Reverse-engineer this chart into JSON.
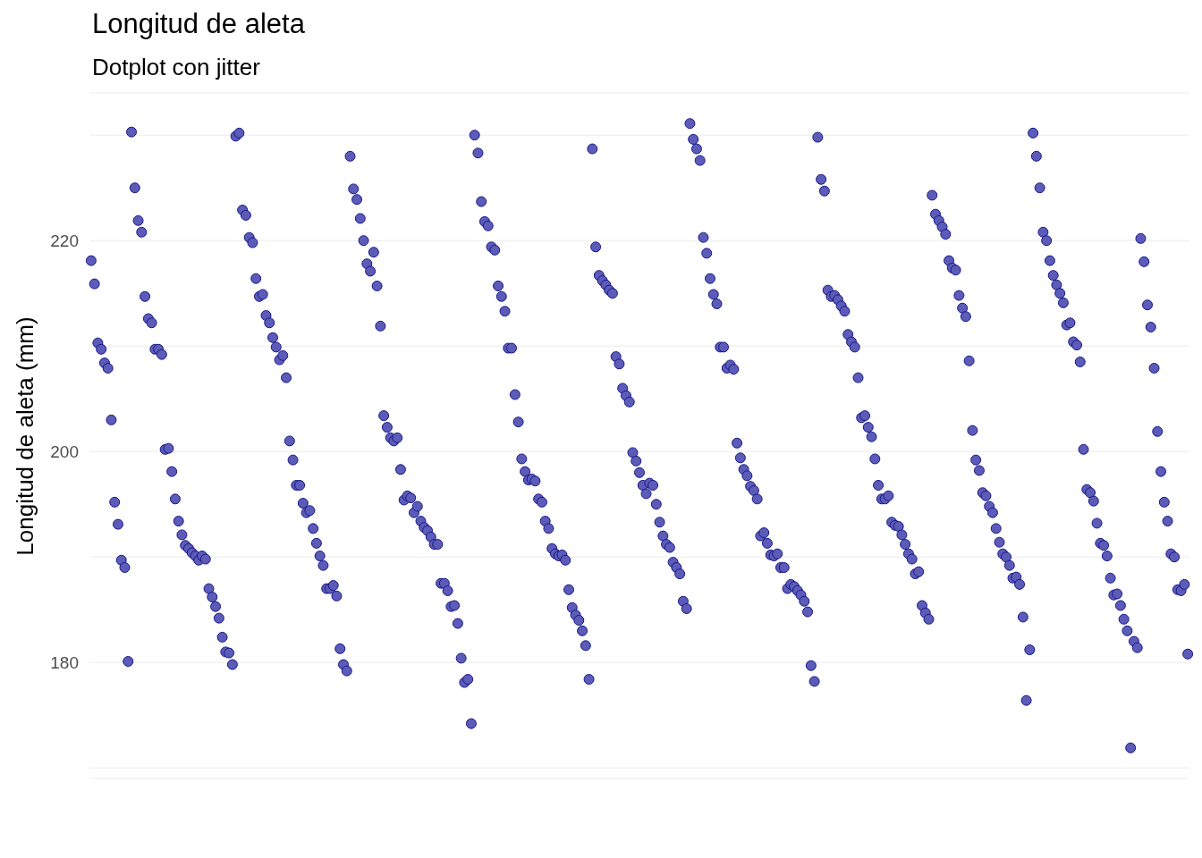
{
  "chart_data": {
    "type": "scatter",
    "title": "Longitud de aleta",
    "subtitle": "Dotplot con jitter",
    "ylabel": "Longitud de aleta (mm)",
    "categories": [
      null,
      null,
      null,
      null,
      null,
      null,
      null,
      null,
      null,
      null,
      null,
      null,
      null,
      null,
      null,
      null,
      null,
      null,
      null,
      null,
      null,
      null,
      null,
      null,
      null,
      null,
      null,
      null,
      null,
      null,
      null,
      null,
      null,
      null,
      null,
      null,
      null,
      null,
      null,
      null,
      null,
      null,
      null,
      null,
      null,
      null,
      null,
      null,
      null,
      null,
      null,
      null,
      null,
      null,
      null,
      null,
      null,
      null,
      null,
      null,
      null,
      null,
      null,
      null,
      null,
      null,
      null,
      null,
      null,
      null,
      null,
      null,
      null,
      null,
      null,
      null,
      null,
      null,
      null,
      null,
      null,
      null,
      null,
      null,
      null,
      null,
      null,
      null,
      null,
      null,
      null,
      null,
      null,
      null,
      null,
      null,
      null,
      null,
      null,
      null,
      null,
      null,
      null,
      null,
      null,
      null,
      null,
      null,
      null,
      null,
      null,
      null,
      null,
      null,
      null,
      null,
      null,
      null,
      null,
      null,
      null,
      null,
      null,
      null,
      null,
      null,
      null,
      null,
      null,
      null,
      null,
      null,
      null,
      null,
      null,
      null,
      null,
      null,
      null,
      null,
      null,
      null,
      null,
      null,
      null,
      null,
      null,
      null,
      null,
      null,
      null,
      null,
      null,
      null,
      null,
      null,
      null,
      null,
      null,
      null,
      null,
      null,
      null,
      null,
      null,
      null,
      null,
      null,
      null,
      null,
      null,
      null,
      null,
      null,
      null,
      null,
      null,
      null,
      null,
      null,
      null,
      null,
      null,
      null,
      null,
      null,
      null,
      null,
      null,
      null,
      null,
      null,
      null,
      null,
      null,
      null,
      null,
      null,
      null,
      null,
      null,
      null,
      null,
      null,
      null,
      null,
      null,
      null,
      null,
      null,
      null,
      null,
      null,
      null,
      null,
      null,
      null,
      null,
      null,
      null,
      null,
      null,
      null,
      null,
      null,
      null,
      null,
      null,
      null,
      null,
      null,
      null,
      null,
      null,
      null,
      null,
      null,
      null,
      null,
      null,
      null,
      null,
      null,
      null,
      null,
      null,
      null,
      null,
      null,
      null,
      null,
      null,
      null,
      null,
      null,
      null,
      null,
      null,
      null,
      null,
      null,
      null,
      null,
      null,
      null,
      null,
      null,
      null,
      null,
      null,
      null,
      null,
      null,
      null,
      null,
      null,
      null,
      null,
      null,
      null,
      null,
      null,
      null,
      null,
      null,
      null,
      null,
      null,
      null,
      null,
      null,
      null,
      null,
      null,
      null,
      null,
      null,
      null,
      null,
      null,
      null,
      null,
      null,
      null,
      null,
      null,
      null,
      null,
      null,
      null,
      null,
      null,
      null,
      null,
      null,
      null,
      null,
      null,
      null,
      null,
      null,
      null,
      null,
      null,
      null,
      null,
      null
    ],
    "ylim": [
      169,
      234
    ],
    "yticks": [
      {
        "value": 170,
        "label": null
      },
      180,
      {
        "value": 190,
        "label": null
      },
      200,
      {
        "value": 210,
        "label": null
      },
      220,
      {
        "value": 230,
        "label": null
      }
    ],
    "grid": "y",
    "tick_labels": "y",
    "marker": "circle",
    "series": [
      {
        "color": "#5c5cb8",
        "values": [
          218.1,
          215.9,
          210.3,
          209.7,
          208.4,
          207.9,
          203.0,
          195.2,
          193.1,
          189.7,
          189.0,
          180.1,
          230.3,
          225.0,
          221.9,
          220.8,
          214.7,
          212.6,
          212.2,
          209.7,
          209.7,
          209.2,
          200.2,
          200.3,
          198.1,
          195.5,
          193.4,
          192.1,
          191.1,
          190.8,
          190.4,
          190.1,
          189.7,
          190.1,
          189.8,
          187.0,
          186.2,
          185.3,
          184.2,
          182.4,
          181.0,
          180.9,
          179.8,
          229.9,
          230.2,
          222.9,
          222.4,
          220.3,
          219.8,
          216.4,
          214.7,
          214.9,
          212.9,
          212.2,
          210.8,
          209.9,
          208.7,
          209.1,
          207.0,
          201.0,
          199.2,
          196.8,
          196.8,
          195.1,
          194.2,
          194.4,
          192.7,
          191.3,
          190.1,
          189.2,
          187.0,
          187.0,
          187.3,
          186.3,
          181.3,
          179.8,
          179.2,
          228.0,
          224.9,
          223.9,
          222.1,
          220.0,
          217.8,
          217.1,
          218.9,
          215.7,
          211.9,
          203.4,
          202.3,
          201.3,
          201.0,
          201.3,
          198.3,
          195.4,
          195.8,
          195.6,
          194.2,
          194.8,
          193.4,
          192.8,
          192.5,
          191.9,
          191.2,
          191.2,
          187.5,
          187.5,
          186.8,
          185.3,
          185.4,
          183.7,
          180.4,
          178.1,
          178.4,
          174.2,
          230.0,
          228.3,
          223.7,
          221.8,
          221.4,
          219.4,
          219.1,
          215.7,
          214.7,
          213.3,
          209.8,
          209.8,
          205.4,
          202.8,
          199.3,
          198.1,
          197.3,
          197.4,
          197.2,
          195.5,
          195.2,
          193.4,
          192.7,
          190.8,
          190.3,
          190.1,
          190.2,
          189.7,
          186.9,
          185.2,
          184.5,
          184.0,
          183.0,
          181.6,
          178.4,
          228.7,
          219.4,
          216.7,
          216.2,
          215.8,
          215.3,
          215.0,
          209.0,
          208.3,
          206.0,
          205.3,
          204.7,
          199.9,
          199.1,
          198.0,
          196.8,
          196.0,
          197.0,
          196.8,
          195.0,
          193.3,
          192.0,
          191.2,
          190.9,
          189.5,
          189.0,
          188.4,
          185.8,
          185.1,
          231.1,
          229.6,
          228.7,
          227.6,
          220.3,
          218.8,
          216.4,
          214.9,
          214.0,
          209.9,
          209.9,
          207.9,
          208.2,
          207.8,
          200.8,
          199.4,
          198.3,
          197.7,
          196.7,
          196.3,
          195.5,
          192.0,
          192.3,
          191.3,
          190.2,
          190.1,
          190.3,
          189.0,
          189.0,
          187.0,
          187.4,
          187.2,
          186.8,
          186.4,
          185.8,
          184.8,
          179.7,
          178.2,
          229.8,
          225.8,
          224.7,
          215.3,
          214.7,
          214.8,
          214.4,
          213.8,
          213.3,
          211.1,
          210.4,
          209.9,
          207.0,
          203.2,
          203.4,
          202.3,
          201.4,
          199.3,
          196.8,
          195.5,
          195.5,
          195.8,
          193.3,
          193.0,
          192.9,
          192.1,
          191.2,
          190.3,
          189.8,
          188.4,
          188.6,
          185.4,
          184.7,
          184.1,
          224.3,
          222.5,
          221.9,
          221.3,
          220.6,
          218.1,
          217.4,
          217.2,
          214.8,
          213.6,
          212.8,
          208.6,
          202.0,
          199.2,
          198.2,
          196.1,
          195.8,
          194.8,
          194.2,
          192.7,
          191.4,
          190.3,
          190.0,
          189.2,
          188.0,
          188.1,
          187.4,
          184.3,
          176.4,
          181.2,
          230.2,
          228.0,
          225.0,
          220.8,
          220.0,
          218.1,
          216.7,
          215.8,
          215.0,
          214.1,
          212.0,
          212.2,
          210.4,
          210.1,
          208.5,
          200.2,
          196.4,
          196.1,
          195.3,
          193.2,
          191.3,
          191.1,
          190.1,
          188.0,
          186.4,
          186.5,
          185.4,
          184.1,
          183.0,
          171.9,
          182.0,
          181.4,
          220.2,
          218.0,
          213.9,
          211.8,
          207.9,
          201.9,
          198.1,
          195.2,
          193.4,
          190.3,
          190.0,
          186.9,
          186.8,
          187.4,
          180.8
        ]
      }
    ]
  }
}
